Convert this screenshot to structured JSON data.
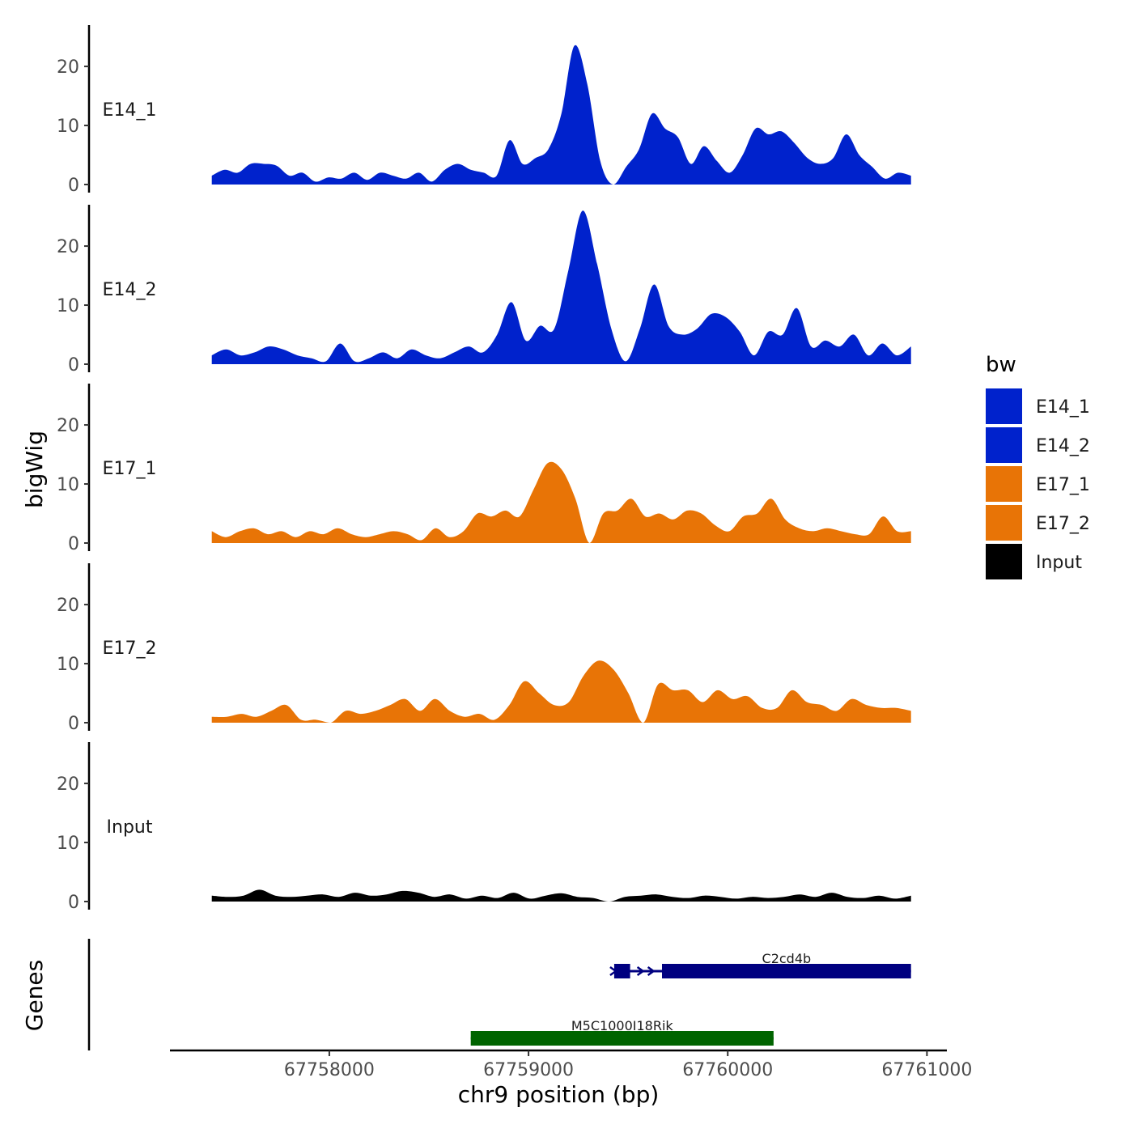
{
  "chart_data": {
    "type": "area",
    "ylabel": "bigWig",
    "xlabel": "chr9 position (bp)",
    "gene_panel_label": "Genes",
    "x_range": [
      67757200,
      67761100
    ],
    "signal_x_range": [
      67757410,
      67760920
    ],
    "ylim": [
      0,
      27
    ],
    "y_ticks": [
      0,
      10,
      20
    ],
    "x_ticks": [
      67758000,
      67759000,
      67760000,
      67761000
    ],
    "x_tick_labels": [
      "67758000",
      "67759000",
      "67760000",
      "67761000"
    ],
    "legend": {
      "title": "bw",
      "position": "right",
      "entries": [
        {
          "label": "E14_1",
          "color": "#0022cc"
        },
        {
          "label": "E14_2",
          "color": "#0022cc"
        },
        {
          "label": "E17_1",
          "color": "#e87406"
        },
        {
          "label": "E17_2",
          "color": "#e87406"
        },
        {
          "label": "Input",
          "color": "#000000"
        }
      ]
    },
    "series": [
      {
        "name": "E14_1",
        "color": "#0022cc",
        "values": [
          1.5,
          2.5,
          2.0,
          3.5,
          3.5,
          3.2,
          1.5,
          2.0,
          0.5,
          1.2,
          1.0,
          2.0,
          0.8,
          2.0,
          1.5,
          1.0,
          2.0,
          0.5,
          2.5,
          3.5,
          2.5,
          2.0,
          1.5,
          7.5,
          3.5,
          4.5,
          6.0,
          12.0,
          23.5,
          17.0,
          4.0,
          0.0,
          3.0,
          6.0,
          12.0,
          9.5,
          8.0,
          3.5,
          6.5,
          4.0,
          2.0,
          5.0,
          9.5,
          8.5,
          9.0,
          7.0,
          4.5,
          3.5,
          4.5,
          8.5,
          5.0,
          3.0,
          1.0,
          2.0,
          1.5
        ]
      },
      {
        "name": "E14_2",
        "color": "#0022cc",
        "values": [
          1.5,
          2.5,
          1.5,
          2.0,
          3.0,
          2.5,
          1.5,
          1.0,
          0.5,
          3.5,
          0.5,
          1.0,
          2.0,
          1.0,
          2.5,
          1.5,
          1.0,
          2.0,
          3.0,
          2.0,
          5.0,
          10.5,
          4.0,
          6.5,
          6.0,
          16.0,
          26.0,
          17.0,
          6.0,
          0.5,
          6.0,
          13.5,
          6.5,
          5.0,
          6.0,
          8.5,
          8.0,
          5.5,
          1.5,
          5.5,
          5.0,
          9.5,
          3.0,
          4.0,
          3.0,
          5.0,
          1.5,
          3.5,
          1.5,
          3.0
        ]
      },
      {
        "name": "E17_1",
        "color": "#e87406",
        "values": [
          2.0,
          1.0,
          2.0,
          2.5,
          1.5,
          2.0,
          1.0,
          2.0,
          1.5,
          2.5,
          1.5,
          1.0,
          1.5,
          2.0,
          1.5,
          0.5,
          2.5,
          1.0,
          2.0,
          5.0,
          4.5,
          5.5,
          4.5,
          9.0,
          13.5,
          12.5,
          7.5,
          0.0,
          5.0,
          5.5,
          7.5,
          4.5,
          5.0,
          4.0,
          5.5,
          5.0,
          3.0,
          2.0,
          4.5,
          5.0,
          7.5,
          4.0,
          2.5,
          2.0,
          2.5,
          2.0,
          1.5,
          1.5,
          4.5,
          2.0,
          2.0
        ]
      },
      {
        "name": "E17_2",
        "color": "#e87406",
        "values": [
          1.0,
          1.0,
          1.5,
          1.0,
          2.0,
          3.0,
          0.5,
          0.5,
          0.0,
          2.0,
          1.5,
          2.0,
          3.0,
          4.0,
          2.0,
          4.0,
          2.0,
          1.0,
          1.5,
          0.5,
          3.0,
          7.0,
          5.0,
          3.0,
          3.5,
          8.0,
          10.5,
          9.0,
          5.0,
          0.0,
          6.5,
          5.5,
          5.5,
          3.5,
          5.5,
          4.0,
          4.5,
          2.5,
          2.5,
          5.5,
          3.5,
          3.0,
          2.0,
          4.0,
          3.0,
          2.5,
          2.5,
          2.0
        ]
      },
      {
        "name": "Input",
        "color": "#000000",
        "values": [
          1.0,
          0.8,
          1.0,
          2.0,
          1.0,
          0.8,
          1.0,
          1.2,
          0.8,
          1.5,
          1.0,
          1.2,
          1.8,
          1.5,
          0.8,
          1.2,
          0.5,
          1.0,
          0.6,
          1.5,
          0.5,
          1.0,
          1.4,
          0.8,
          0.6,
          0.0,
          0.8,
          1.0,
          1.2,
          0.8,
          0.6,
          1.0,
          0.8,
          0.5,
          0.8,
          0.6,
          0.8,
          1.2,
          0.8,
          1.5,
          0.8,
          0.6,
          1.0,
          0.5,
          1.0
        ]
      }
    ],
    "genes": [
      {
        "name": "C2cd4b",
        "start": 67759430,
        "end": 67760920,
        "strand": "+",
        "color": "#000080",
        "blocks": [
          [
            67759430,
            67759510
          ],
          [
            67759670,
            67760920
          ]
        ]
      },
      {
        "name": "M5C1000I18Rik",
        "start": 67758710,
        "end": 67760230,
        "strand": "+",
        "color": "#006400",
        "blocks": [
          [
            67758710,
            67760230
          ]
        ]
      }
    ]
  }
}
